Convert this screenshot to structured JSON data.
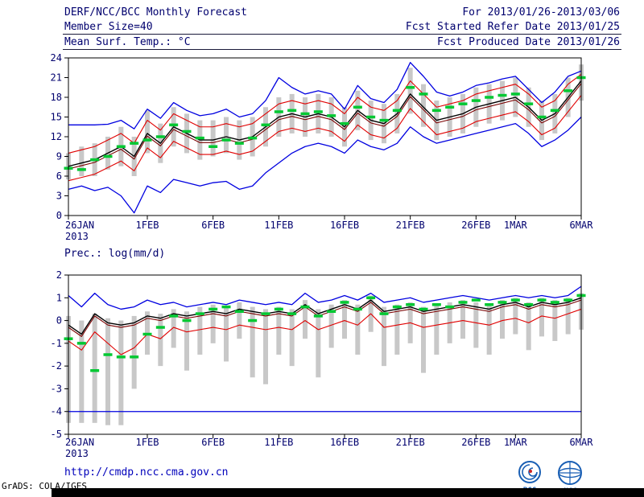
{
  "header": {
    "title": "DERF/NCC/BCC Monthly Forecast",
    "member_size": "Member Size=40",
    "temp_label": "Mean Surf. Temp.: °C",
    "for_range": "For 2013/01/26-2013/03/06",
    "refer_date": "Fcst Started Refer Date 2013/01/25",
    "produced_date": "Fcst Produced Date 2013/01/26"
  },
  "footer": {
    "url": "http://cmdp.ncc.cma.gov.cn",
    "credit": "GrADS: COLA/IGES",
    "logos": [
      {
        "label": "BCC"
      },
      {
        "label": "NCC"
      }
    ]
  },
  "colors": {
    "text": "#00006e",
    "frame": "#000000",
    "bar": "#c8c8c8",
    "blue": "#0000e0",
    "red": "#e00000",
    "maroon": "#7a0000",
    "black": "#000000",
    "green": "#00c832",
    "url": "#0000bb",
    "logo_blue": "#1a5fb4"
  },
  "chart_data": [
    {
      "type": "line",
      "title": "Mean Surf. Temp.: °C",
      "ylim": [
        0,
        24
      ],
      "y_ticks": [
        0,
        3,
        6,
        9,
        12,
        15,
        18,
        21,
        24
      ],
      "x_tick_labels": [
        "26JAN",
        "1FEB",
        "6FEB",
        "11FEB",
        "16FEB",
        "21FEB",
        "26FEB",
        "1MAR",
        "6MAR"
      ],
      "x_tick_indices": [
        0,
        6,
        11,
        16,
        21,
        26,
        31,
        34,
        39
      ],
      "x_year_label": "2013",
      "n_points": 40,
      "grid": false,
      "bars": {
        "color": "#c8c8c8",
        "ranges": [
          [
            5.5,
            9.5
          ],
          [
            6.0,
            10.5
          ],
          [
            6.0,
            11.0
          ],
          [
            7.0,
            12.0
          ],
          [
            7.5,
            13.5
          ],
          [
            6.0,
            12.0
          ],
          [
            9.5,
            16.0
          ],
          [
            8.0,
            14.0
          ],
          [
            10.5,
            16.5
          ],
          [
            9.5,
            15.5
          ],
          [
            8.5,
            14.5
          ],
          [
            9.0,
            14.5
          ],
          [
            9.5,
            15.0
          ],
          [
            8.5,
            14.5
          ],
          [
            9.0,
            15.0
          ],
          [
            10.5,
            16.5
          ],
          [
            12.0,
            18.0
          ],
          [
            12.5,
            18.5
          ],
          [
            12.0,
            18.0
          ],
          [
            12.5,
            18.5
          ],
          [
            12.0,
            18.0
          ],
          [
            10.5,
            16.5
          ],
          [
            13.0,
            19.0
          ],
          [
            11.5,
            17.5
          ],
          [
            11.0,
            17.0
          ],
          [
            12.5,
            18.5
          ],
          [
            15.5,
            22.5
          ],
          [
            13.5,
            20.0
          ],
          [
            11.5,
            17.5
          ],
          [
            12.0,
            18.0
          ],
          [
            12.5,
            18.5
          ],
          [
            13.5,
            19.5
          ],
          [
            14.0,
            20.0
          ],
          [
            14.5,
            20.5
          ],
          [
            15.0,
            21.0
          ],
          [
            13.5,
            19.5
          ],
          [
            11.5,
            17.5
          ],
          [
            12.5,
            18.5
          ],
          [
            15.0,
            21.0
          ],
          [
            17.5,
            23.0
          ]
        ]
      },
      "series": [
        {
          "name": "ensemble-max",
          "color": "#0000e0",
          "style": "line",
          "width": 1.3,
          "values": [
            13.8,
            13.8,
            13.8,
            13.9,
            14.5,
            13.2,
            16.2,
            14.8,
            17.2,
            16.0,
            15.2,
            15.5,
            16.2,
            15.0,
            15.5,
            17.5,
            21.0,
            19.5,
            18.5,
            19.0,
            18.5,
            16.2,
            19.8,
            17.8,
            17.2,
            19.2,
            23.3,
            21.2,
            18.8,
            18.2,
            18.8,
            19.8,
            20.2,
            20.8,
            21.2,
            19.2,
            17.2,
            18.8,
            21.2,
            22.0
          ]
        },
        {
          "name": "ensemble-min",
          "color": "#0000e0",
          "style": "line",
          "width": 1.3,
          "values": [
            4.0,
            4.5,
            3.8,
            4.3,
            3.0,
            0.4,
            4.5,
            3.5,
            5.5,
            5.0,
            4.5,
            5.0,
            5.2,
            4.0,
            4.5,
            6.5,
            8.0,
            9.5,
            10.5,
            11.0,
            10.5,
            9.5,
            11.5,
            10.5,
            10.0,
            11.0,
            13.5,
            12.0,
            11.0,
            11.5,
            12.0,
            12.5,
            13.0,
            13.5,
            14.0,
            12.5,
            10.5,
            11.5,
            13.0,
            15.0
          ]
        },
        {
          "name": "upper-quartile",
          "color": "#e00000",
          "style": "line",
          "width": 1.1,
          "values": [
            9.5,
            10.0,
            10.5,
            11.5,
            12.5,
            11.0,
            14.5,
            13.0,
            15.5,
            14.5,
            13.5,
            13.5,
            14.0,
            13.5,
            14.0,
            15.5,
            17.0,
            17.5,
            17.0,
            17.5,
            17.0,
            15.5,
            18.0,
            16.5,
            16.0,
            17.5,
            20.5,
            18.5,
            16.5,
            17.0,
            17.5,
            18.5,
            19.0,
            19.5,
            20.0,
            18.5,
            16.5,
            17.5,
            20.0,
            21.5
          ]
        },
        {
          "name": "lower-quartile",
          "color": "#e00000",
          "style": "line",
          "width": 1.1,
          "values": [
            5.3,
            5.8,
            6.3,
            7.3,
            8.3,
            6.8,
            10.3,
            8.8,
            11.3,
            10.3,
            9.3,
            9.3,
            9.8,
            9.3,
            9.8,
            11.3,
            12.8,
            13.3,
            12.8,
            13.3,
            12.8,
            11.3,
            13.8,
            12.3,
            11.8,
            13.3,
            16.3,
            14.3,
            12.3,
            12.8,
            13.3,
            14.3,
            14.8,
            15.3,
            15.8,
            14.3,
            12.3,
            13.3,
            15.8,
            18.3
          ]
        },
        {
          "name": "control-run",
          "color": "#7a0000",
          "style": "line",
          "width": 1.1,
          "values": [
            7.1,
            7.6,
            8.1,
            9.1,
            10.1,
            8.6,
            12.1,
            10.6,
            13.1,
            12.1,
            11.1,
            11.1,
            11.6,
            11.1,
            11.6,
            13.1,
            14.6,
            15.1,
            14.6,
            15.1,
            14.6,
            13.1,
            15.6,
            14.1,
            13.6,
            15.1,
            18.1,
            16.1,
            14.1,
            14.6,
            15.1,
            16.1,
            16.6,
            17.1,
            17.6,
            16.1,
            14.1,
            15.1,
            17.6,
            20.1
          ]
        },
        {
          "name": "ensemble-mean",
          "color": "#000000",
          "style": "line",
          "width": 1.4,
          "values": [
            7.5,
            8.0,
            8.5,
            9.5,
            10.5,
            9.0,
            12.5,
            11.0,
            13.5,
            12.5,
            11.5,
            11.5,
            12.0,
            11.5,
            12.0,
            13.5,
            15.0,
            15.5,
            15.0,
            15.5,
            15.0,
            13.5,
            16.0,
            14.5,
            14.0,
            15.5,
            18.5,
            16.5,
            14.5,
            15.0,
            15.5,
            16.5,
            17.0,
            17.5,
            18.0,
            16.5,
            14.5,
            15.5,
            18.0,
            20.5
          ]
        },
        {
          "name": "observation",
          "color": "#00c832",
          "style": "dashes",
          "width": 3.5,
          "values": [
            7.2,
            7.0,
            8.5,
            9.0,
            10.5,
            11.0,
            11.5,
            12.0,
            13.8,
            12.8,
            11.8,
            10.5,
            11.5,
            11.0,
            11.8,
            13.8,
            15.8,
            16.0,
            15.5,
            15.8,
            15.2,
            14.0,
            16.5,
            15.0,
            14.5,
            16.0,
            19.5,
            18.5,
            16.0,
            16.5,
            17.0,
            17.5,
            18.0,
            18.3,
            18.5,
            17.0,
            15.0,
            16.0,
            19.0,
            21.0
          ]
        }
      ]
    },
    {
      "type": "line",
      "title": "Prec.: log(mm/d)",
      "ylim": [
        -5,
        2
      ],
      "y_ticks": [
        -5,
        -4,
        -3,
        -2,
        -1,
        0,
        1,
        2
      ],
      "x_tick_labels": [
        "26JAN",
        "1FEB",
        "6FEB",
        "11FEB",
        "16FEB",
        "21FEB",
        "26FEB",
        "1MAR",
        "6MAR"
      ],
      "x_tick_indices": [
        0,
        6,
        11,
        16,
        21,
        26,
        31,
        34,
        39
      ],
      "x_year_label": "2013",
      "n_points": 40,
      "grid": false,
      "reference_line": {
        "y": -4,
        "color": "#0000e0"
      },
      "bars": {
        "color": "#c8c8c8",
        "ranges": [
          [
            -4.5,
            0.2
          ],
          [
            -4.5,
            0.0
          ],
          [
            -4.5,
            0.3
          ],
          [
            -4.6,
            0.1
          ],
          [
            -4.6,
            0.0
          ],
          [
            -3.0,
            0.2
          ],
          [
            -1.5,
            0.4
          ],
          [
            -2.0,
            0.3
          ],
          [
            -1.2,
            0.5
          ],
          [
            -2.2,
            0.4
          ],
          [
            -1.5,
            0.6
          ],
          [
            -1.0,
            0.7
          ],
          [
            -1.8,
            0.6
          ],
          [
            -0.8,
            0.8
          ],
          [
            -2.5,
            0.6
          ],
          [
            -2.8,
            0.5
          ],
          [
            -1.5,
            0.6
          ],
          [
            -2.0,
            0.5
          ],
          [
            -0.8,
            0.9
          ],
          [
            -2.5,
            0.5
          ],
          [
            -1.2,
            0.7
          ],
          [
            -0.8,
            0.9
          ],
          [
            -1.5,
            0.7
          ],
          [
            -0.5,
            1.1
          ],
          [
            -2.0,
            0.6
          ],
          [
            -1.5,
            0.7
          ],
          [
            -1.0,
            0.8
          ],
          [
            -2.3,
            0.6
          ],
          [
            -1.5,
            0.7
          ],
          [
            -1.0,
            0.8
          ],
          [
            -0.8,
            0.9
          ],
          [
            -1.2,
            0.8
          ],
          [
            -1.5,
            0.7
          ],
          [
            -0.8,
            0.9
          ],
          [
            -0.6,
            1.0
          ],
          [
            -1.3,
            0.8
          ],
          [
            -0.7,
            1.0
          ],
          [
            -0.9,
            0.9
          ],
          [
            -0.6,
            1.0
          ],
          [
            -0.4,
            1.2
          ]
        ]
      },
      "series": [
        {
          "name": "ensemble-max",
          "color": "#0000e0",
          "style": "line",
          "width": 1.3,
          "values": [
            1.1,
            0.6,
            1.2,
            0.7,
            0.5,
            0.6,
            0.9,
            0.7,
            0.8,
            0.6,
            0.7,
            0.8,
            0.7,
            0.9,
            0.8,
            0.7,
            0.8,
            0.7,
            1.2,
            0.8,
            0.9,
            1.1,
            0.9,
            1.2,
            0.8,
            0.9,
            1.0,
            0.8,
            0.9,
            1.0,
            1.1,
            1.0,
            0.9,
            1.0,
            1.1,
            1.0,
            1.1,
            1.0,
            1.1,
            1.5
          ]
        },
        {
          "name": "lower-quartile",
          "color": "#e00000",
          "style": "line",
          "width": 1.1,
          "values": [
            -0.9,
            -1.3,
            -0.5,
            -1.0,
            -1.5,
            -1.2,
            -0.6,
            -0.8,
            -0.3,
            -0.5,
            -0.4,
            -0.3,
            -0.4,
            -0.2,
            -0.3,
            -0.4,
            -0.3,
            -0.4,
            0.0,
            -0.4,
            -0.2,
            0.0,
            -0.2,
            0.3,
            -0.3,
            -0.2,
            -0.1,
            -0.3,
            -0.2,
            -0.1,
            0.0,
            -0.1,
            -0.2,
            0.0,
            0.1,
            -0.1,
            0.2,
            0.1,
            0.3,
            0.5
          ]
        },
        {
          "name": "control-run",
          "color": "#7a0000",
          "style": "line",
          "width": 1.1,
          "values": [
            -0.3,
            -0.7,
            0.2,
            -0.2,
            -0.3,
            -0.2,
            0.1,
            0.0,
            0.2,
            0.1,
            0.2,
            0.3,
            0.2,
            0.4,
            0.3,
            0.2,
            0.3,
            0.2,
            0.6,
            0.2,
            0.4,
            0.6,
            0.4,
            0.8,
            0.3,
            0.4,
            0.5,
            0.3,
            0.4,
            0.5,
            0.6,
            0.5,
            0.4,
            0.6,
            0.7,
            0.5,
            0.7,
            0.6,
            0.7,
            0.9
          ]
        },
        {
          "name": "ensemble-mean",
          "color": "#000000",
          "style": "line",
          "width": 1.4,
          "values": [
            -0.2,
            -0.6,
            0.3,
            -0.1,
            -0.2,
            -0.1,
            0.2,
            0.1,
            0.3,
            0.2,
            0.3,
            0.4,
            0.3,
            0.5,
            0.4,
            0.3,
            0.4,
            0.3,
            0.7,
            0.3,
            0.5,
            0.7,
            0.5,
            0.9,
            0.4,
            0.5,
            0.6,
            0.4,
            0.5,
            0.6,
            0.7,
            0.6,
            0.5,
            0.7,
            0.8,
            0.6,
            0.8,
            0.7,
            0.8,
            1.0
          ]
        },
        {
          "name": "observation",
          "color": "#00c832",
          "style": "dashes",
          "width": 3.5,
          "values": [
            -0.8,
            -1.0,
            -2.2,
            -1.5,
            -1.6,
            -1.6,
            -0.6,
            -0.3,
            0.2,
            0.0,
            0.3,
            0.5,
            0.6,
            0.4,
            0.0,
            0.3,
            0.5,
            0.3,
            0.6,
            0.2,
            0.4,
            0.8,
            0.5,
            1.0,
            0.3,
            0.6,
            0.7,
            0.5,
            0.7,
            0.6,
            0.8,
            0.9,
            0.7,
            0.8,
            0.9,
            0.7,
            0.9,
            0.8,
            0.9,
            1.1
          ]
        }
      ]
    }
  ]
}
